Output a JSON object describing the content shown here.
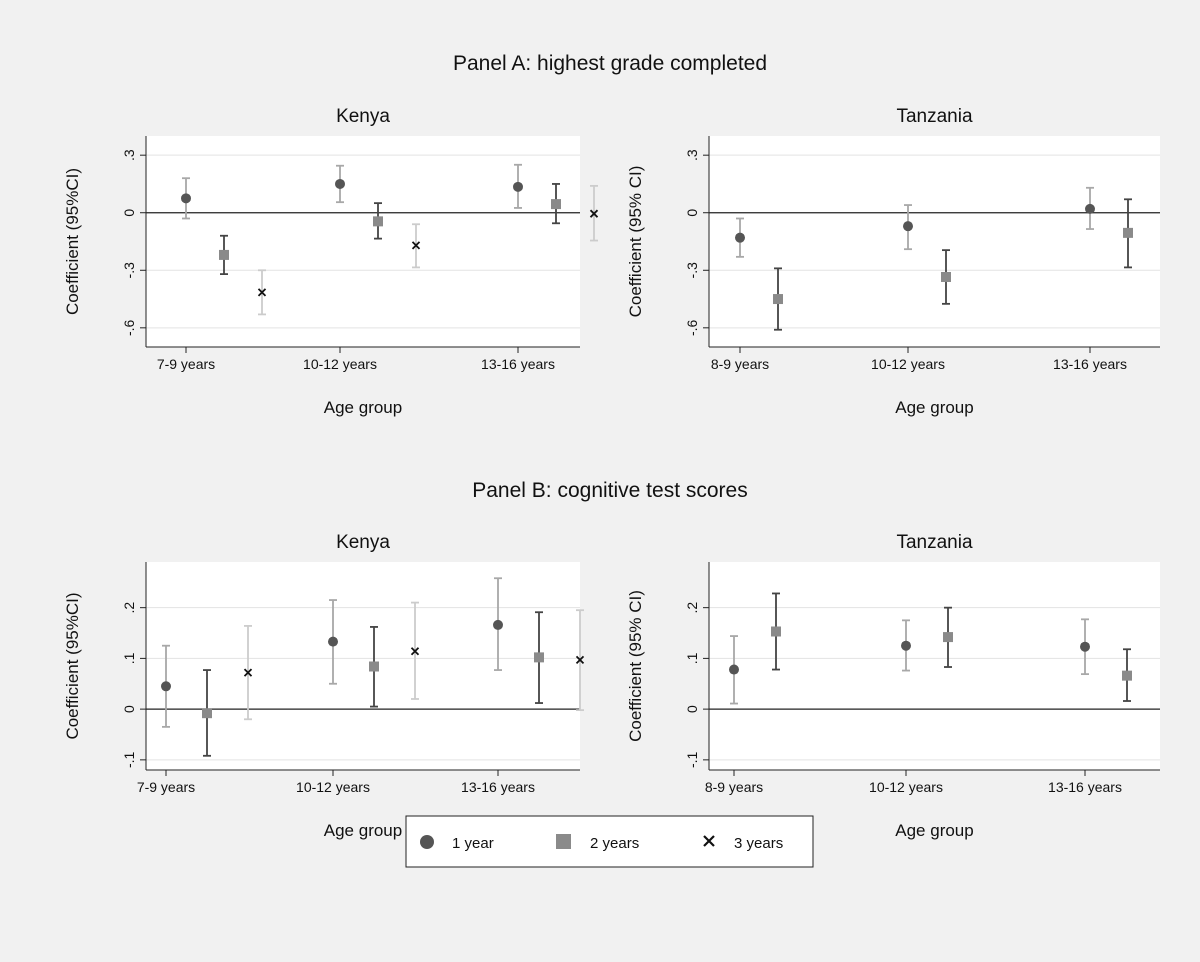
{
  "panels": [
    {
      "title": "Panel A: highest grade completed"
    },
    {
      "title": "Panel B: cognitive test scores"
    }
  ],
  "legend": {
    "items": [
      {
        "label": "1 year",
        "marker": "circle",
        "color": "#555555"
      },
      {
        "label": "2 years",
        "marker": "square",
        "color": "#8a8a8a"
      },
      {
        "label": "3 years",
        "marker": "x",
        "color": "#111111"
      }
    ]
  },
  "colors": {
    "ci_1yr_kenya": "#a8a8a8",
    "ci_2yr": "#444444",
    "ci_3yr": "#cccccc",
    "ci_tz_1yr": "#a8a8a8",
    "ci_tz_2yr": "#444444",
    "gridline": "#e3e3e3",
    "plot_bg": "#ffffff",
    "page_bg": "#f1f1f1"
  },
  "chart_data": [
    {
      "type": "scatter",
      "panel": "A",
      "title": "Kenya",
      "xlabel": "Age group",
      "ylabel": "Coefficient (95%CI)",
      "ylim": [
        -0.7,
        0.4
      ],
      "yticks": [
        -0.6,
        -0.3,
        0,
        0.3
      ],
      "ytick_labels": [
        "-.6",
        "-.3",
        "0",
        ".3"
      ],
      "categories": [
        "7-9 years",
        "10-12 years",
        "13-16 years"
      ],
      "series": [
        {
          "name": "1 year",
          "values": [
            0.075,
            0.15,
            0.135
          ],
          "ci_low": [
            -0.03,
            0.055,
            0.025
          ],
          "ci_high": [
            0.18,
            0.245,
            0.25
          ]
        },
        {
          "name": "2 years",
          "values": [
            -0.22,
            -0.045,
            0.045
          ],
          "ci_low": [
            -0.32,
            -0.135,
            -0.055
          ],
          "ci_high": [
            -0.12,
            0.05,
            0.15
          ]
        },
        {
          "name": "3 years",
          "values": [
            -0.415,
            -0.17,
            -0.005
          ],
          "ci_low": [
            -0.53,
            -0.285,
            -0.145
          ],
          "ci_high": [
            -0.3,
            -0.06,
            0.14
          ]
        }
      ],
      "grid": true,
      "zero_line": true
    },
    {
      "type": "scatter",
      "panel": "A",
      "title": "Tanzania",
      "xlabel": "Age group",
      "ylabel": "Coefficient (95% CI)",
      "ylim": [
        -0.7,
        0.4
      ],
      "yticks": [
        -0.6,
        -0.3,
        0,
        0.3
      ],
      "ytick_labels": [
        "-.6",
        "-.3",
        "0",
        ".3"
      ],
      "categories": [
        "8-9 years",
        "10-12 years",
        "13-16 years"
      ],
      "series": [
        {
          "name": "1 year",
          "values": [
            -0.13,
            -0.07,
            0.02
          ],
          "ci_low": [
            -0.23,
            -0.19,
            -0.085
          ],
          "ci_high": [
            -0.03,
            0.04,
            0.13
          ]
        },
        {
          "name": "2 years",
          "values": [
            -0.45,
            -0.335,
            -0.105
          ],
          "ci_low": [
            -0.61,
            -0.475,
            -0.285
          ],
          "ci_high": [
            -0.29,
            -0.195,
            0.07
          ]
        }
      ],
      "grid": true,
      "zero_line": true
    },
    {
      "type": "scatter",
      "panel": "B",
      "title": "Kenya",
      "xlabel": "Age group",
      "ylabel": "Coefficient (95%CI)",
      "ylim": [
        -0.12,
        0.29
      ],
      "yticks": [
        -0.1,
        0,
        0.1,
        0.2
      ],
      "ytick_labels": [
        "-.1",
        "0",
        ".1",
        ".2"
      ],
      "categories": [
        "7-9 years",
        "10-12 years",
        "13-16 years"
      ],
      "series": [
        {
          "name": "1 year",
          "values": [
            0.045,
            0.133,
            0.166
          ],
          "ci_low": [
            -0.035,
            0.05,
            0.077
          ],
          "ci_high": [
            0.125,
            0.215,
            0.258
          ]
        },
        {
          "name": "2 years",
          "values": [
            -0.008,
            0.084,
            0.102
          ],
          "ci_low": [
            -0.092,
            0.005,
            0.012
          ],
          "ci_high": [
            0.077,
            0.162,
            0.191
          ]
        },
        {
          "name": "3 years",
          "values": [
            0.072,
            0.114,
            0.097
          ],
          "ci_low": [
            -0.02,
            0.02,
            -0.002
          ],
          "ci_high": [
            0.164,
            0.21,
            0.195
          ]
        }
      ],
      "grid": true,
      "zero_line": true
    },
    {
      "type": "scatter",
      "panel": "B",
      "title": "Tanzania",
      "xlabel": "Age group",
      "ylabel": "Coefficient (95% CI)",
      "ylim": [
        -0.12,
        0.29
      ],
      "yticks": [
        -0.1,
        0,
        0.1,
        0.2
      ],
      "ytick_labels": [
        "-.1",
        "0",
        ".1",
        ".2"
      ],
      "categories": [
        "8-9 years",
        "10-12 years",
        "13-16 years"
      ],
      "series": [
        {
          "name": "1 year",
          "values": [
            0.078,
            0.125,
            0.123
          ],
          "ci_low": [
            0.011,
            0.076,
            0.069
          ],
          "ci_high": [
            0.144,
            0.175,
            0.177
          ]
        },
        {
          "name": "2 years",
          "values": [
            0.153,
            0.142,
            0.066
          ],
          "ci_low": [
            0.078,
            0.083,
            0.016
          ],
          "ci_high": [
            0.228,
            0.2,
            0.118
          ]
        }
      ],
      "grid": true,
      "zero_line": true
    }
  ]
}
